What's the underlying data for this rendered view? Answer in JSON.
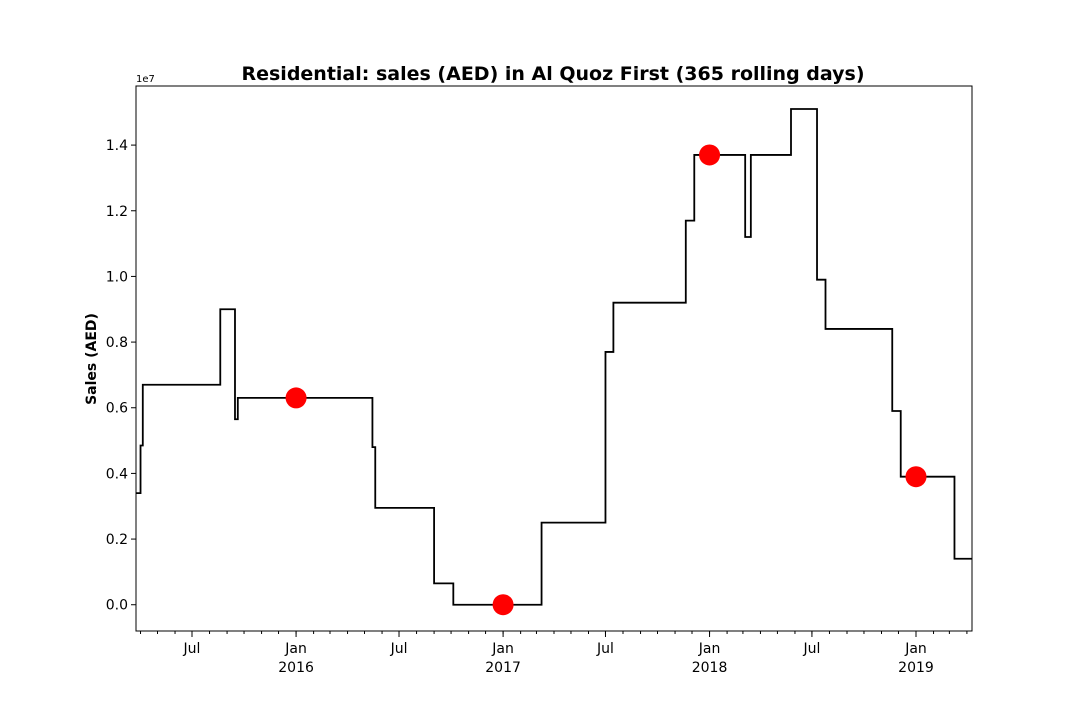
{
  "chart_data": {
    "type": "line",
    "title": "Residential: sales (AED) in Al Quoz First (365 rolling days)",
    "xlabel": "",
    "ylabel": "Sales (AED)",
    "y_offset_label": "1e7",
    "y_scale_factor": 10000000,
    "xlim": [
      "2015-03-24",
      "2019-04-10"
    ],
    "ylim": [
      -800000,
      15800000
    ],
    "y_ticks": [
      0,
      2000000,
      4000000,
      6000000,
      8000000,
      10000000,
      12000000,
      14000000
    ],
    "y_tick_labels": [
      "0.0",
      "0.2",
      "0.4",
      "0.6",
      "0.8",
      "1.0",
      "1.2",
      "1.4"
    ],
    "x_ticks": [
      {
        "date": "2015-07-01",
        "label": "Jul",
        "sub": ""
      },
      {
        "date": "2016-01-01",
        "label": "Jan",
        "sub": "2016"
      },
      {
        "date": "2016-07-01",
        "label": "Jul",
        "sub": ""
      },
      {
        "date": "2017-01-01",
        "label": "Jan",
        "sub": "2017"
      },
      {
        "date": "2017-07-01",
        "label": "Jul",
        "sub": ""
      },
      {
        "date": "2018-01-01",
        "label": "Jan",
        "sub": "2018"
      },
      {
        "date": "2018-07-01",
        "label": "Jul",
        "sub": ""
      },
      {
        "date": "2019-01-01",
        "label": "Jan",
        "sub": "2019"
      }
    ],
    "grid": false,
    "series": [
      {
        "style": "step",
        "color": "#000000",
        "points": [
          [
            "2015-03-24",
            3400000
          ],
          [
            "2015-04-01",
            4850000
          ],
          [
            "2015-04-05",
            6700000
          ],
          [
            "2015-08-20",
            9000000
          ],
          [
            "2015-09-15",
            5650000
          ],
          [
            "2015-09-20",
            6300000
          ],
          [
            "2016-05-15",
            4800000
          ],
          [
            "2016-05-20",
            2950000
          ],
          [
            "2016-09-01",
            650000
          ],
          [
            "2016-10-05",
            0
          ],
          [
            "2017-03-10",
            2500000
          ],
          [
            "2017-07-01",
            7700000
          ],
          [
            "2017-07-15",
            9200000
          ],
          [
            "2017-11-20",
            11700000
          ],
          [
            "2017-12-05",
            13700000
          ],
          [
            "2018-03-05",
            11200000
          ],
          [
            "2018-03-15",
            13700000
          ],
          [
            "2018-05-25",
            15100000
          ],
          [
            "2018-07-10",
            9900000
          ],
          [
            "2018-07-25",
            8400000
          ],
          [
            "2018-11-20",
            5900000
          ],
          [
            "2018-12-05",
            3900000
          ],
          [
            "2019-03-10",
            1400000
          ],
          [
            "2019-04-10",
            1400000
          ]
        ]
      },
      {
        "style": "markers",
        "color": "#ff0000",
        "points": [
          [
            "2016-01-01",
            6300000
          ],
          [
            "2017-01-01",
            0
          ],
          [
            "2018-01-01",
            13700000
          ],
          [
            "2019-01-01",
            3900000
          ]
        ]
      }
    ]
  }
}
